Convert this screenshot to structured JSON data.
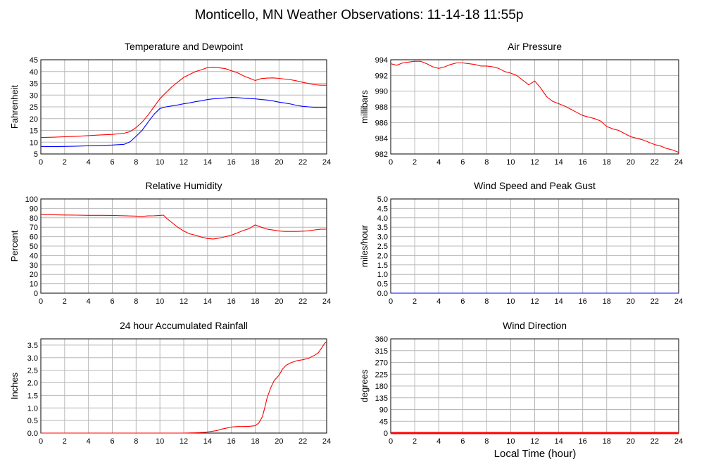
{
  "page": {
    "title": "Monticello, MN Weather Observations: 11-14-18 11:55p",
    "x_axis_label": "Local Time (hour)"
  },
  "chart_data": [
    {
      "id": "temperature",
      "type": "line",
      "title": "Temperature and Dewpoint",
      "ylabel": "Fahrenheit",
      "xlabel": "",
      "xlim": [
        0,
        24
      ],
      "ylim": [
        5,
        45
      ],
      "x_ticks": [
        0,
        2,
        4,
        6,
        8,
        10,
        12,
        14,
        16,
        18,
        20,
        22,
        24
      ],
      "y_ticks": [
        5,
        10,
        15,
        20,
        25,
        30,
        35,
        40,
        45
      ],
      "grid": true,
      "series": [
        {
          "color": "#ff0000",
          "x": [
            0,
            1,
            2,
            3,
            4,
            5,
            6,
            7,
            7.5,
            8,
            8.5,
            9,
            9.5,
            10,
            10.5,
            11,
            11.5,
            12,
            12.5,
            13,
            13.5,
            14,
            14.5,
            15,
            15.5,
            16,
            16.5,
            17,
            17.5,
            18,
            18.5,
            19,
            19.5,
            20,
            20.5,
            21,
            21.5,
            22,
            22.5,
            23,
            23.5,
            24
          ],
          "y": [
            12,
            12.1,
            12.3,
            12.5,
            12.8,
            13.1,
            13.3,
            13.8,
            14.5,
            16.2,
            18.5,
            21.5,
            25,
            28.5,
            31,
            33.5,
            35.5,
            37.5,
            38.8,
            40,
            40.8,
            41.7,
            41.8,
            41.6,
            41.2,
            40.3,
            39.5,
            38.2,
            37.2,
            36.2,
            37,
            37.2,
            37.3,
            37.1,
            36.8,
            36.5,
            36,
            35.4,
            34.9,
            34.4,
            34.2,
            34.2
          ]
        },
        {
          "color": "#0000ff",
          "x": [
            0,
            1,
            2,
            3,
            4,
            5,
            6,
            7,
            7.5,
            8,
            8.5,
            9,
            9.5,
            10,
            10.5,
            11,
            11.5,
            12,
            12.5,
            13,
            13.5,
            14,
            14.5,
            15,
            15.5,
            16,
            16.5,
            17,
            17.5,
            18,
            18.5,
            19,
            19.5,
            20,
            20.5,
            21,
            21.5,
            22,
            22.5,
            23,
            23.5,
            24
          ],
          "y": [
            8.2,
            8.1,
            8.2,
            8.3,
            8.5,
            8.6,
            8.8,
            9.1,
            10.2,
            12.5,
            15,
            18.5,
            21.8,
            24.3,
            25,
            25.4,
            25.8,
            26.3,
            26.7,
            27.2,
            27.6,
            28.1,
            28.4,
            28.6,
            28.8,
            29,
            28.9,
            28.7,
            28.5,
            28.4,
            28.1,
            27.9,
            27.5,
            27,
            26.6,
            26.2,
            25.6,
            25.2,
            25,
            24.8,
            24.8,
            24.8
          ]
        }
      ]
    },
    {
      "id": "pressure",
      "type": "line",
      "title": "Air Pressure",
      "ylabel": "millibars",
      "xlabel": "",
      "xlim": [
        0,
        24
      ],
      "ylim": [
        982,
        994
      ],
      "x_ticks": [
        0,
        2,
        4,
        6,
        8,
        10,
        12,
        14,
        16,
        18,
        20,
        22,
        24
      ],
      "y_ticks": [
        982,
        984,
        986,
        988,
        990,
        992,
        994
      ],
      "grid": true,
      "series": [
        {
          "color": "#ff0000",
          "x": [
            0,
            0.5,
            1,
            1.5,
            2,
            2.5,
            3,
            3.5,
            4,
            4.5,
            5,
            5.5,
            6,
            6.5,
            7,
            7.5,
            8,
            8.5,
            9,
            9.5,
            10,
            10.5,
            11,
            11.5,
            12,
            12.5,
            13,
            13.5,
            14,
            14.5,
            15,
            15.5,
            16,
            16.5,
            17,
            17.5,
            18,
            18.5,
            19,
            19.5,
            20,
            20.5,
            21,
            21.5,
            22,
            22.5,
            23,
            23.5,
            24
          ],
          "y": [
            993.5,
            993.3,
            993.6,
            993.7,
            993.8,
            993.8,
            993.5,
            993.1,
            992.9,
            993.1,
            993.4,
            993.6,
            993.6,
            993.5,
            993.4,
            993.2,
            993.2,
            993.1,
            992.9,
            992.5,
            992.3,
            992,
            991.4,
            990.8,
            991.3,
            990.4,
            989.3,
            988.7,
            988.4,
            988.1,
            987.7,
            987.3,
            986.9,
            986.7,
            986.5,
            986.2,
            985.5,
            985.2,
            985,
            984.6,
            984.2,
            984,
            983.8,
            983.5,
            983.2,
            983,
            982.7,
            982.5,
            982.2
          ]
        }
      ]
    },
    {
      "id": "humidity",
      "type": "line",
      "title": "Relative Humidity",
      "ylabel": "Percent",
      "xlabel": "",
      "xlim": [
        0,
        24
      ],
      "ylim": [
        0,
        100
      ],
      "x_ticks": [
        0,
        2,
        4,
        6,
        8,
        10,
        12,
        14,
        16,
        18,
        20,
        22,
        24
      ],
      "y_ticks": [
        0,
        10,
        20,
        30,
        40,
        50,
        60,
        70,
        80,
        90,
        100
      ],
      "grid": true,
      "series": [
        {
          "color": "#ff0000",
          "x": [
            0,
            1,
            2,
            3,
            4,
            5,
            6,
            7,
            8,
            8.5,
            9,
            9.5,
            10,
            10.3,
            10.6,
            11,
            11.5,
            12,
            12.5,
            13,
            13.5,
            14,
            14.5,
            15,
            15.5,
            16,
            16.5,
            17,
            17.5,
            18,
            18.5,
            19,
            19.5,
            20,
            20.5,
            21,
            21.5,
            22,
            22.5,
            23,
            23.5,
            24
          ],
          "y": [
            83.5,
            83.2,
            83,
            82.8,
            82.6,
            82.6,
            82.5,
            82.2,
            81.8,
            81.5,
            82,
            82.2,
            82.5,
            82.8,
            79,
            75,
            70,
            66,
            63,
            61.5,
            59.5,
            58,
            57.5,
            58.5,
            60,
            61.5,
            64,
            66.5,
            68.5,
            72.5,
            70,
            68,
            67,
            66,
            65.5,
            65.5,
            65.5,
            65.8,
            66.2,
            67.2,
            67.8,
            68
          ]
        }
      ]
    },
    {
      "id": "wind_speed",
      "type": "line",
      "title": "Wind Speed and Peak Gust",
      "ylabel": "miles/hour",
      "xlabel": "",
      "xlim": [
        0,
        24
      ],
      "ylim": [
        0,
        5
      ],
      "x_ticks": [
        0,
        2,
        4,
        6,
        8,
        10,
        12,
        14,
        16,
        18,
        20,
        22,
        24
      ],
      "y_ticks": [
        0,
        0.5,
        1,
        1.5,
        2,
        2.5,
        3,
        3.5,
        4,
        4.5,
        5
      ],
      "y_tick_labels": [
        "0.0",
        "0.5",
        "1.0",
        "1.5",
        "2.0",
        "2.5",
        "3.0",
        "3.5",
        "4.0",
        "4.5",
        "5.0"
      ],
      "grid": true,
      "series": [
        {
          "color": "#ff0000",
          "x": [
            0,
            24
          ],
          "y": [
            0,
            0
          ]
        },
        {
          "color": "#0000ff",
          "x": [
            0,
            24
          ],
          "y": [
            0,
            0
          ]
        }
      ]
    },
    {
      "id": "rainfall",
      "type": "line",
      "title": "24 hour Accumulated Rainfall",
      "ylabel": "Inches",
      "xlabel": "",
      "xlim": [
        0,
        24
      ],
      "ylim": [
        0,
        3.75
      ],
      "x_ticks": [
        0,
        2,
        4,
        6,
        8,
        10,
        12,
        14,
        16,
        18,
        20,
        22,
        24
      ],
      "y_ticks": [
        0,
        0.5,
        1,
        1.5,
        2,
        2.5,
        3,
        3.5
      ],
      "y_tick_labels": [
        "0.0",
        "0.5",
        "1.0",
        "1.5",
        "2.0",
        "2.5",
        "3.0",
        "3.5"
      ],
      "grid": true,
      "series": [
        {
          "color": "#ff0000",
          "x": [
            0,
            12,
            13,
            13.8,
            14.2,
            14.8,
            15.2,
            15.6,
            16,
            16.5,
            17,
            17.5,
            18,
            18.3,
            18.6,
            18.8,
            19,
            19.3,
            19.6,
            20,
            20.3,
            20.6,
            21,
            21.5,
            22,
            22.5,
            23,
            23.3,
            23.6,
            23.8,
            24
          ],
          "y": [
            0,
            0,
            0.01,
            0.03,
            0.06,
            0.1,
            0.16,
            0.2,
            0.24,
            0.26,
            0.26,
            0.27,
            0.29,
            0.4,
            0.65,
            1,
            1.4,
            1.8,
            2.1,
            2.3,
            2.55,
            2.7,
            2.8,
            2.88,
            2.92,
            2.98,
            3.1,
            3.2,
            3.4,
            3.55,
            3.65
          ]
        }
      ]
    },
    {
      "id": "wind_direction",
      "type": "line",
      "title": "Wind Direction",
      "ylabel": "degrees",
      "xlabel": "",
      "xlim": [
        0,
        24
      ],
      "ylim": [
        0,
        360
      ],
      "x_ticks": [
        0,
        2,
        4,
        6,
        8,
        10,
        12,
        14,
        16,
        18,
        20,
        22,
        24
      ],
      "y_ticks": [
        0,
        45,
        90,
        135,
        180,
        225,
        270,
        315,
        360
      ],
      "grid": true,
      "series": [
        {
          "color": "#ff0000",
          "x": [
            0,
            24
          ],
          "y": [
            0,
            0
          ]
        }
      ]
    }
  ]
}
